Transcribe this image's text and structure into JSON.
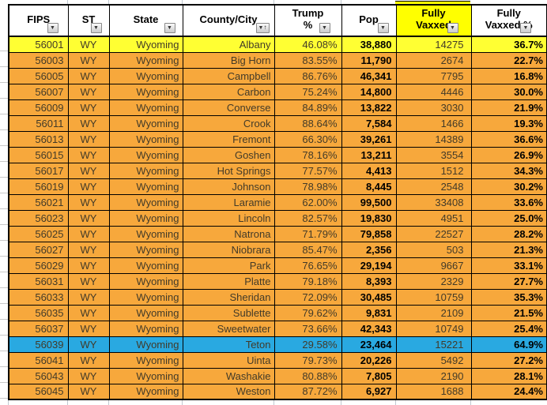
{
  "icons": {
    "filter": "▼",
    "sort_asc": "↑"
  },
  "colors": {
    "row_orange": "#F7A83C",
    "row_yellow": "#FFFF33",
    "row_blue": "#29A9E1",
    "header_bg": "#FFFFFF",
    "header_highlight_bg": "#FFFF00",
    "border": "#000000"
  },
  "table": {
    "columns": [
      {
        "label": "FIPS"
      },
      {
        "label": "ST"
      },
      {
        "label": "State"
      },
      {
        "label": "County/City",
        "sorted": "ascending"
      },
      {
        "label": "Trump\n%"
      },
      {
        "label": "Pop"
      },
      {
        "label": "Fully\nVaxxed",
        "highlighted": true
      },
      {
        "label": "Fully\nVaxxed %"
      }
    ],
    "rows": [
      {
        "fips": "56001",
        "st": "WY",
        "state": "Wyoming",
        "county": "Albany",
        "trump_pct": "46.08%",
        "pop": "38,880",
        "fully_vaxxed": "14275",
        "fully_vaxxed_pct": "36.7%",
        "highlight": "yellow"
      },
      {
        "fips": "56003",
        "st": "WY",
        "state": "Wyoming",
        "county": "Big Horn",
        "trump_pct": "83.55%",
        "pop": "11,790",
        "fully_vaxxed": "2674",
        "fully_vaxxed_pct": "22.7%",
        "highlight": "orange"
      },
      {
        "fips": "56005",
        "st": "WY",
        "state": "Wyoming",
        "county": "Campbell",
        "trump_pct": "86.76%",
        "pop": "46,341",
        "fully_vaxxed": "7795",
        "fully_vaxxed_pct": "16.8%",
        "highlight": "orange"
      },
      {
        "fips": "56007",
        "st": "WY",
        "state": "Wyoming",
        "county": "Carbon",
        "trump_pct": "75.24%",
        "pop": "14,800",
        "fully_vaxxed": "4446",
        "fully_vaxxed_pct": "30.0%",
        "highlight": "orange"
      },
      {
        "fips": "56009",
        "st": "WY",
        "state": "Wyoming",
        "county": "Converse",
        "trump_pct": "84.89%",
        "pop": "13,822",
        "fully_vaxxed": "3030",
        "fully_vaxxed_pct": "21.9%",
        "highlight": "orange"
      },
      {
        "fips": "56011",
        "st": "WY",
        "state": "Wyoming",
        "county": "Crook",
        "trump_pct": "88.64%",
        "pop": "7,584",
        "fully_vaxxed": "1466",
        "fully_vaxxed_pct": "19.3%",
        "highlight": "orange"
      },
      {
        "fips": "56013",
        "st": "WY",
        "state": "Wyoming",
        "county": "Fremont",
        "trump_pct": "66.30%",
        "pop": "39,261",
        "fully_vaxxed": "14389",
        "fully_vaxxed_pct": "36.6%",
        "highlight": "orange"
      },
      {
        "fips": "56015",
        "st": "WY",
        "state": "Wyoming",
        "county": "Goshen",
        "trump_pct": "78.16%",
        "pop": "13,211",
        "fully_vaxxed": "3554",
        "fully_vaxxed_pct": "26.9%",
        "highlight": "orange"
      },
      {
        "fips": "56017",
        "st": "WY",
        "state": "Wyoming",
        "county": "Hot Springs",
        "trump_pct": "77.57%",
        "pop": "4,413",
        "fully_vaxxed": "1512",
        "fully_vaxxed_pct": "34.3%",
        "highlight": "orange"
      },
      {
        "fips": "56019",
        "st": "WY",
        "state": "Wyoming",
        "county": "Johnson",
        "trump_pct": "78.98%",
        "pop": "8,445",
        "fully_vaxxed": "2548",
        "fully_vaxxed_pct": "30.2%",
        "highlight": "orange"
      },
      {
        "fips": "56021",
        "st": "WY",
        "state": "Wyoming",
        "county": "Laramie",
        "trump_pct": "62.00%",
        "pop": "99,500",
        "fully_vaxxed": "33408",
        "fully_vaxxed_pct": "33.6%",
        "highlight": "orange"
      },
      {
        "fips": "56023",
        "st": "WY",
        "state": "Wyoming",
        "county": "Lincoln",
        "trump_pct": "82.57%",
        "pop": "19,830",
        "fully_vaxxed": "4951",
        "fully_vaxxed_pct": "25.0%",
        "highlight": "orange"
      },
      {
        "fips": "56025",
        "st": "WY",
        "state": "Wyoming",
        "county": "Natrona",
        "trump_pct": "71.79%",
        "pop": "79,858",
        "fully_vaxxed": "22527",
        "fully_vaxxed_pct": "28.2%",
        "highlight": "orange"
      },
      {
        "fips": "56027",
        "st": "WY",
        "state": "Wyoming",
        "county": "Niobrara",
        "trump_pct": "85.47%",
        "pop": "2,356",
        "fully_vaxxed": "503",
        "fully_vaxxed_pct": "21.3%",
        "highlight": "orange"
      },
      {
        "fips": "56029",
        "st": "WY",
        "state": "Wyoming",
        "county": "Park",
        "trump_pct": "76.65%",
        "pop": "29,194",
        "fully_vaxxed": "9667",
        "fully_vaxxed_pct": "33.1%",
        "highlight": "orange"
      },
      {
        "fips": "56031",
        "st": "WY",
        "state": "Wyoming",
        "county": "Platte",
        "trump_pct": "79.18%",
        "pop": "8,393",
        "fully_vaxxed": "2329",
        "fully_vaxxed_pct": "27.7%",
        "highlight": "orange"
      },
      {
        "fips": "56033",
        "st": "WY",
        "state": "Wyoming",
        "county": "Sheridan",
        "trump_pct": "72.09%",
        "pop": "30,485",
        "fully_vaxxed": "10759",
        "fully_vaxxed_pct": "35.3%",
        "highlight": "orange"
      },
      {
        "fips": "56035",
        "st": "WY",
        "state": "Wyoming",
        "county": "Sublette",
        "trump_pct": "79.62%",
        "pop": "9,831",
        "fully_vaxxed": "2109",
        "fully_vaxxed_pct": "21.5%",
        "highlight": "orange"
      },
      {
        "fips": "56037",
        "st": "WY",
        "state": "Wyoming",
        "county": "Sweetwater",
        "trump_pct": "73.66%",
        "pop": "42,343",
        "fully_vaxxed": "10749",
        "fully_vaxxed_pct": "25.4%",
        "highlight": "orange"
      },
      {
        "fips": "56039",
        "st": "WY",
        "state": "Wyoming",
        "county": "Teton",
        "trump_pct": "29.58%",
        "pop": "23,464",
        "fully_vaxxed": "15221",
        "fully_vaxxed_pct": "64.9%",
        "highlight": "blue"
      },
      {
        "fips": "56041",
        "st": "WY",
        "state": "Wyoming",
        "county": "Uinta",
        "trump_pct": "79.73%",
        "pop": "20,226",
        "fully_vaxxed": "5492",
        "fully_vaxxed_pct": "27.2%",
        "highlight": "orange"
      },
      {
        "fips": "56043",
        "st": "WY",
        "state": "Wyoming",
        "county": "Washakie",
        "trump_pct": "80.88%",
        "pop": "7,805",
        "fully_vaxxed": "2190",
        "fully_vaxxed_pct": "28.1%",
        "highlight": "orange"
      },
      {
        "fips": "56045",
        "st": "WY",
        "state": "Wyoming",
        "county": "Weston",
        "trump_pct": "87.72%",
        "pop": "6,927",
        "fully_vaxxed": "1688",
        "fully_vaxxed_pct": "24.4%",
        "highlight": "orange"
      }
    ]
  }
}
